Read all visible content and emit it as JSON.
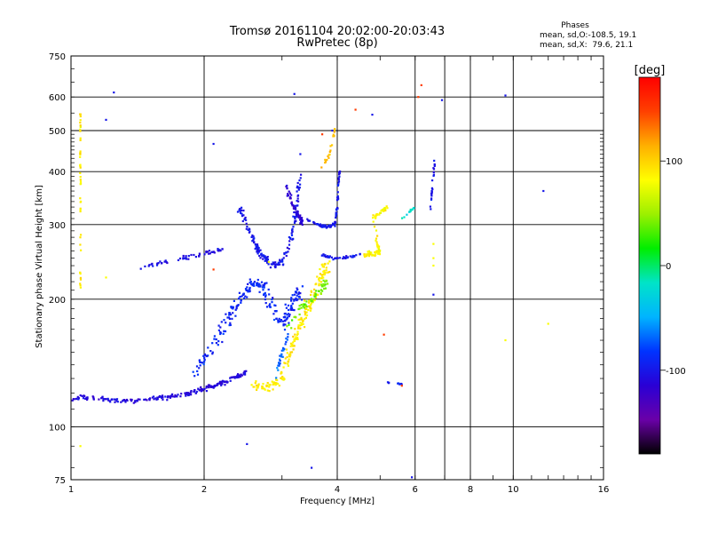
{
  "chart_data": {
    "type": "scatter",
    "title": "Tromsø 20161104 20:02:00-20:03:43",
    "subtitle": "RwPretec (8p)",
    "xlabel": "Frequency [MHz]",
    "ylabel": "Stationary phase Virtual Height [km]",
    "x_scale": "log",
    "y_scale": "log",
    "xlim": [
      1,
      16
    ],
    "ylim": [
      75,
      750
    ],
    "x_ticks": [
      1,
      2,
      4,
      6,
      8,
      10,
      16
    ],
    "x_tick_labels": [
      "1",
      "2",
      "4",
      "6",
      "8",
      "10",
      "16"
    ],
    "y_ticks": [
      75,
      100,
      200,
      300,
      400,
      500,
      600,
      750
    ],
    "y_tick_labels": [
      "75",
      "100",
      "200",
      "300",
      "400",
      "500",
      "600",
      "750"
    ],
    "x_grid": [
      1,
      2,
      4,
      6,
      7,
      8,
      10
    ],
    "y_grid": [
      100,
      200,
      300,
      400,
      500,
      600
    ],
    "grid": true,
    "colorbar": {
      "label": "[deg]",
      "range": [
        -180,
        180
      ],
      "ticks": [
        100,
        0,
        -100
      ],
      "tick_labels": [
        "100",
        "0",
        "-100"
      ],
      "colors": [
        "#000000",
        "#6a00a8",
        "#2a00d5",
        "#0033ff",
        "#00b4ff",
        "#00e4c8",
        "#00ee00",
        "#9cf000",
        "#ffff00",
        "#ffb000",
        "#ff4000",
        "#ff0000"
      ]
    },
    "stats": {
      "title": "Phases",
      "line1": "mean, sd,O:-108.5, 19.1",
      "line2": "mean, sd,X:  79.6, 21.1"
    },
    "series": [
      {
        "type": "trace",
        "value": -110,
        "points": [
          [
            1.0,
            116
          ],
          [
            1.05,
            118
          ],
          [
            1.1,
            117
          ],
          [
            1.2,
            116
          ],
          [
            1.3,
            115
          ],
          [
            1.4,
            115
          ],
          [
            1.5,
            116
          ],
          [
            1.6,
            117
          ],
          [
            1.7,
            118
          ],
          [
            1.8,
            119
          ],
          [
            1.9,
            121
          ],
          [
            2.0,
            123
          ],
          [
            2.1,
            125
          ],
          [
            2.2,
            127
          ],
          [
            2.3,
            129
          ],
          [
            2.4,
            132
          ],
          [
            2.5,
            135
          ]
        ],
        "spread_x": 0.01,
        "spread_y": 0.018,
        "count": 220
      },
      {
        "type": "trace",
        "value": -90,
        "points": [
          [
            1.9,
            135
          ],
          [
            2.0,
            145
          ],
          [
            2.1,
            155
          ],
          [
            2.2,
            170
          ],
          [
            2.3,
            185
          ],
          [
            2.4,
            200
          ],
          [
            2.5,
            210
          ],
          [
            2.6,
            220
          ],
          [
            2.7,
            215
          ],
          [
            2.8,
            200
          ],
          [
            2.9,
            185
          ],
          [
            3.0,
            175
          ],
          [
            3.1,
            185
          ],
          [
            3.2,
            200
          ],
          [
            3.3,
            210
          ]
        ],
        "spread_x": 0.035,
        "spread_y": 0.05,
        "count": 230
      },
      {
        "type": "trace",
        "value": -105,
        "points": [
          [
            1.4,
            235
          ],
          [
            1.6,
            243
          ],
          [
            1.8,
            250
          ],
          [
            2.0,
            256
          ],
          [
            2.2,
            262
          ]
        ],
        "spread_x": 0.012,
        "spread_y": 0.015,
        "count": 55
      },
      {
        "type": "trace",
        "value": -100,
        "points": [
          [
            2.4,
            330
          ],
          [
            2.5,
            300
          ],
          [
            2.6,
            270
          ],
          [
            2.7,
            255
          ],
          [
            2.8,
            245
          ],
          [
            2.9,
            240
          ],
          [
            3.0,
            245
          ],
          [
            3.1,
            265
          ],
          [
            3.2,
            300
          ],
          [
            3.25,
            350
          ],
          [
            3.3,
            400
          ]
        ],
        "spread_x": 0.015,
        "spread_y": 0.025,
        "count": 170
      },
      {
        "type": "trace",
        "value": -115,
        "points": [
          [
            3.05,
            380
          ],
          [
            3.15,
            340
          ],
          [
            3.25,
            320
          ],
          [
            3.3,
            310
          ],
          [
            3.35,
            300
          ]
        ],
        "spread_x": 0.01,
        "spread_y": 0.03,
        "count": 60
      },
      {
        "type": "trace",
        "value": -100,
        "points": [
          [
            3.4,
            310
          ],
          [
            3.6,
            300
          ],
          [
            3.8,
            296
          ],
          [
            3.95,
            300
          ],
          [
            4.0,
            330
          ],
          [
            4.02,
            370
          ],
          [
            4.05,
            400
          ]
        ],
        "spread_x": 0.006,
        "spread_y": 0.012,
        "count": 80
      },
      {
        "type": "trace",
        "value": -100,
        "points": [
          [
            3.7,
            255
          ],
          [
            3.9,
            250
          ],
          [
            4.1,
            250
          ],
          [
            4.3,
            252
          ],
          [
            4.5,
            255
          ]
        ],
        "spread_x": 0.01,
        "spread_y": 0.01,
        "count": 45
      },
      {
        "type": "trace",
        "value": -70,
        "points": [
          [
            2.9,
            130
          ],
          [
            3.0,
            150
          ],
          [
            3.1,
            165
          ]
        ],
        "spread_x": 0.01,
        "spread_y": 0.03,
        "count": 28
      },
      {
        "type": "trace",
        "value": 90,
        "points": [
          [
            2.6,
            125
          ],
          [
            2.8,
            124
          ],
          [
            3.0,
            130
          ],
          [
            3.1,
            145
          ],
          [
            3.2,
            160
          ],
          [
            3.3,
            175
          ],
          [
            3.4,
            185
          ],
          [
            3.5,
            200
          ],
          [
            3.6,
            215
          ],
          [
            3.7,
            230
          ],
          [
            3.8,
            240
          ]
        ],
        "spread_x": 0.03,
        "spread_y": 0.04,
        "count": 190
      },
      {
        "type": "trace",
        "value": 40,
        "points": [
          [
            3.1,
            170
          ],
          [
            3.3,
            190
          ],
          [
            3.5,
            200
          ],
          [
            3.7,
            212
          ],
          [
            3.8,
            220
          ]
        ],
        "spread_x": 0.02,
        "spread_y": 0.03,
        "count": 55
      },
      {
        "type": "trace",
        "value": 85,
        "points": [
          [
            4.6,
            255
          ],
          [
            4.8,
            255
          ],
          [
            5.0,
            258
          ],
          [
            4.8,
            310
          ],
          [
            5.0,
            320
          ],
          [
            5.2,
            330
          ]
        ],
        "spread_x": 0.012,
        "spread_y": 0.02,
        "count": 95
      },
      {
        "type": "trace",
        "value": 110,
        "points": [
          [
            3.7,
            410
          ],
          [
            3.85,
            440
          ],
          [
            3.9,
            480
          ],
          [
            3.95,
            500
          ]
        ],
        "spread_x": 0.006,
        "spread_y": 0.02,
        "count": 22
      },
      {
        "type": "trace",
        "value": 90,
        "points": [
          [
            1.05,
            210
          ],
          [
            1.05,
            260
          ],
          [
            1.05,
            320
          ],
          [
            1.05,
            400
          ],
          [
            1.05,
            480
          ],
          [
            1.05,
            560
          ]
        ],
        "spread_x": 0.004,
        "spread_y": 0.03,
        "count": 45
      },
      {
        "type": "trace",
        "value": -100,
        "points": [
          [
            6.5,
            330
          ],
          [
            6.55,
            360
          ],
          [
            6.6,
            390
          ],
          [
            6.65,
            430
          ]
        ],
        "spread_x": 0.004,
        "spread_y": 0.015,
        "count": 22
      },
      {
        "type": "trace",
        "value": -20,
        "points": [
          [
            5.6,
            310
          ],
          [
            5.8,
            320
          ],
          [
            6.0,
            330
          ]
        ],
        "spread_x": 0.005,
        "spread_y": 0.01,
        "count": 12
      },
      {
        "type": "trace",
        "value": -95,
        "points": [
          [
            5.2,
            127
          ],
          [
            5.4,
            127
          ],
          [
            5.6,
            126
          ]
        ],
        "spread_x": 0.003,
        "spread_y": 0.005,
        "count": 9
      },
      {
        "type": "points",
        "value": -100,
        "points": [
          [
            3.2,
            610
          ],
          [
            4.8,
            545
          ],
          [
            6.9,
            590
          ],
          [
            9.6,
            605
          ],
          [
            11.7,
            360
          ],
          [
            3.5,
            80
          ],
          [
            2.5,
            91
          ],
          [
            5.9,
            76
          ],
          [
            2.1,
            465
          ],
          [
            1.2,
            530
          ],
          [
            1.25,
            615
          ],
          [
            6.6,
            205
          ],
          [
            3.3,
            440
          ],
          [
            3.9,
            500
          ]
        ]
      },
      {
        "type": "points",
        "value": 150,
        "points": [
          [
            6.1,
            600
          ],
          [
            4.4,
            560
          ],
          [
            3.7,
            490
          ],
          [
            5.1,
            165
          ],
          [
            5.6,
            125
          ],
          [
            6.2,
            640
          ],
          [
            2.1,
            235
          ]
        ]
      },
      {
        "type": "points",
        "value": 80,
        "points": [
          [
            1.05,
            90
          ],
          [
            9.6,
            160
          ],
          [
            12.0,
            175
          ],
          [
            6.6,
            250
          ],
          [
            6.6,
            240
          ],
          [
            6.6,
            270
          ],
          [
            2.8,
            245
          ],
          [
            1.2,
            225
          ]
        ]
      }
    ]
  }
}
